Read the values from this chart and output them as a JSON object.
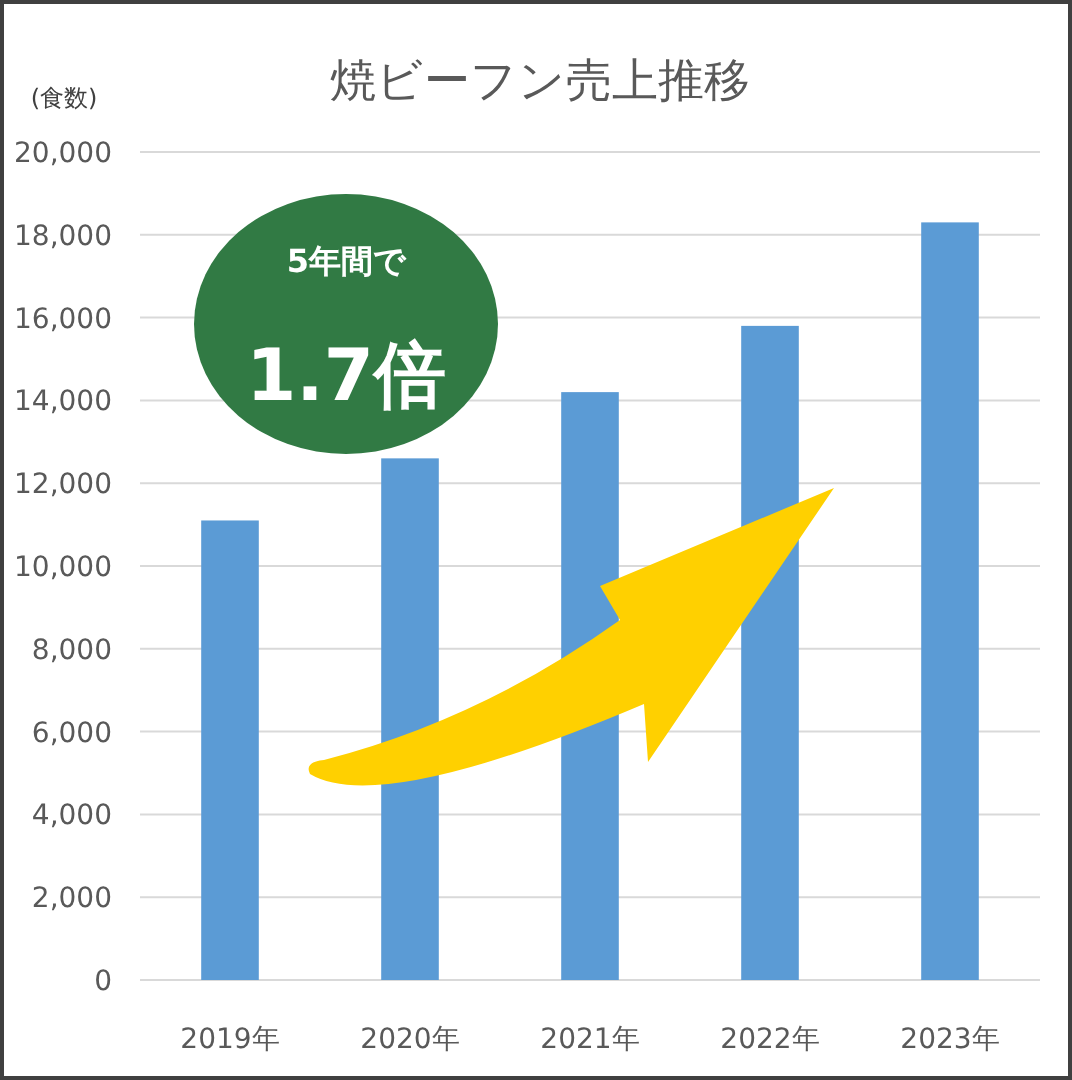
{
  "chart_data": {
    "type": "bar",
    "title": "焼ビーフン売上推移",
    "ylabel": "(食数)",
    "categories": [
      "2019年",
      "2020年",
      "2021年",
      "2022年",
      "2023年"
    ],
    "values": [
      11100,
      12600,
      14200,
      15800,
      18300
    ],
    "color": "#5b9bd5",
    "ylim": [
      0,
      20000
    ],
    "yticks": [
      {
        "value": 0,
        "label": "0"
      },
      {
        "value": 2000,
        "label": "2,000"
      },
      {
        "value": 4000,
        "label": "4,000"
      },
      {
        "value": 6000,
        "label": "6,000"
      },
      {
        "value": 8000,
        "label": "8,000"
      },
      {
        "value": 10000,
        "label": "10,000"
      },
      {
        "value": 12000,
        "label": "12,000"
      },
      {
        "value": 14000,
        "label": "14,000"
      },
      {
        "value": 16000,
        "label": "16,000"
      },
      {
        "value": 18000,
        "label": "18,000"
      },
      {
        "value": 20000,
        "label": "20,000"
      }
    ],
    "grid": "y",
    "annotations": [
      "5年間で",
      "1.7倍"
    ]
  }
}
